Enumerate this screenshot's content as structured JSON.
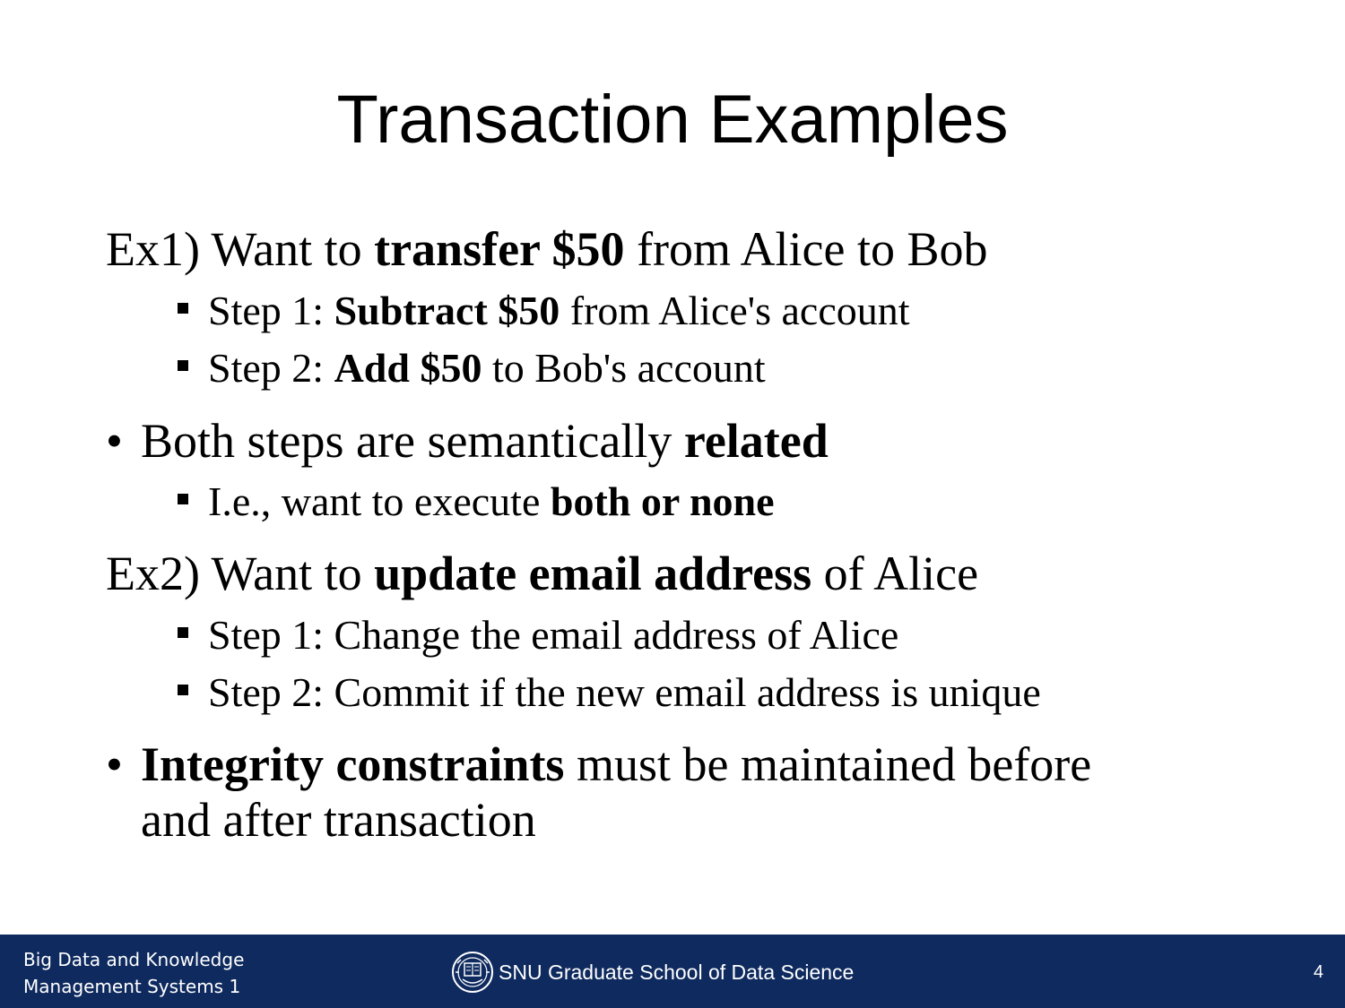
{
  "title": "Transaction Examples",
  "content": {
    "ex1": {
      "prefix": "Ex1) Want to ",
      "bold": "transfer $50",
      "suffix": " from Alice to Bob",
      "step1": {
        "prefix": "Step 1: ",
        "bold": "Subtract $50",
        "suffix": " from Alice's account"
      },
      "step2": {
        "prefix": "Step 2: ",
        "bold": "Add $50",
        "suffix": " to Bob's account"
      }
    },
    "related": {
      "prefix": "Both steps are semantically ",
      "bold": "related",
      "sub": {
        "prefix": "I.e., want to execute ",
        "bold": "both or none"
      }
    },
    "ex2": {
      "prefix": "Ex2) Want to ",
      "bold": "update email address",
      "suffix": " of Alice",
      "step1": "Step 1: Change the email address of Alice",
      "step2": "Step 2: Commit if the new email address is unique"
    },
    "integrity": {
      "bold": "Integrity constraints",
      "suffix_line1": " must be maintained before",
      "line2": "and after transaction"
    }
  },
  "footer": {
    "course_line1": "Big Data and Knowledge",
    "course_line2": "Management Systems 1",
    "school": "SNU Graduate School of Data Science",
    "page_number": "4",
    "logo_icon": "snu-emblem-icon",
    "background_color": "#0e2a5e"
  }
}
